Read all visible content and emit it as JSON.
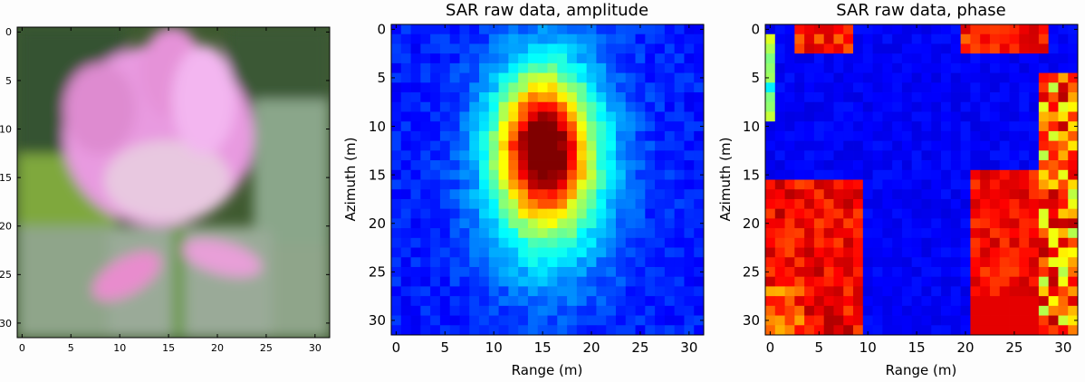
{
  "chart_data": [
    {
      "type": "heatmap",
      "title": "",
      "xlabel": "",
      "ylabel": "",
      "xlim": [
        -0.5,
        31.5
      ],
      "ylim": [
        31.5,
        -0.5
      ],
      "xticks": [
        "0",
        "5",
        "10",
        "15",
        "20",
        "25",
        "30"
      ],
      "yticks": [
        "0",
        "5",
        "10",
        "15",
        "20",
        "25",
        "30"
      ],
      "content": "photograph of a pink lotus flower on green background, 32x32 pixels"
    },
    {
      "type": "heatmap",
      "title": "SAR raw data, amplitude",
      "xlabel": "Range (m)",
      "ylabel": "Azimuth (m)",
      "xlim": [
        -0.5,
        31.5
      ],
      "ylim": [
        31.5,
        -0.5
      ],
      "xticks": [
        "0",
        "5",
        "10",
        "15",
        "20",
        "25",
        "30"
      ],
      "yticks": [
        "0",
        "5",
        "10",
        "15",
        "20",
        "25",
        "30"
      ],
      "colormap": "jet"
    },
    {
      "type": "heatmap",
      "title": "SAR raw data, phase",
      "xlabel": "Range (m)",
      "ylabel": "Azimuth (m)",
      "xlim": [
        -0.5,
        31.5
      ],
      "ylim": [
        31.5,
        -0.5
      ],
      "xticks": [
        "0",
        "5",
        "10",
        "15",
        "20",
        "25",
        "30"
      ],
      "yticks": [
        "0",
        "5",
        "10",
        "15",
        "20",
        "25",
        "30"
      ],
      "colormap": "jet"
    }
  ]
}
